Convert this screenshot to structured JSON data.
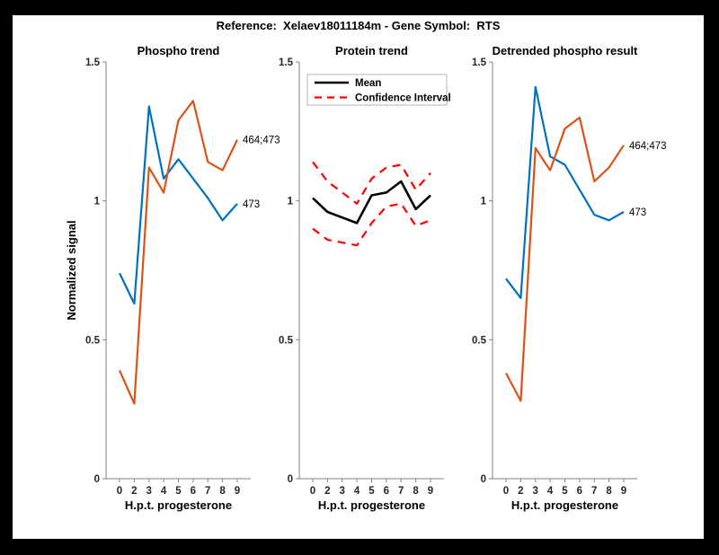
{
  "page": {
    "title": "Reference:  Xelaev18011184m - Gene Symbol:  RTS"
  },
  "colors": {
    "series_blue": "#0072BD",
    "series_orange": "#D95319",
    "ci_red": "#FF0000",
    "mean_black": "#000000",
    "axis_line": "#808080",
    "tick_text": "#262626",
    "legend_border": "#B3B3B3"
  },
  "axes": {
    "ylabel": "Normalized signal",
    "xlabel": "H.p.t. progesterone",
    "ylim": [
      0,
      1.5
    ],
    "y_ticks": [
      "0",
      "0.5",
      "1",
      "1.5"
    ],
    "y_tick_values": [
      0,
      0.5,
      1,
      1.5
    ],
    "x_tick_labels": [
      "0",
      "2",
      "3",
      "4",
      "5",
      "6",
      "7",
      "8",
      "9"
    ],
    "grid": "off"
  },
  "chart_data": [
    {
      "type": "line",
      "title": "Phospho trend",
      "xlabel": "H.p.t. progesterone",
      "ylabel": "Normalized signal",
      "ylim": [
        0,
        1.5
      ],
      "categories": [
        "0",
        "2",
        "3",
        "4",
        "5",
        "6",
        "7",
        "8",
        "9"
      ],
      "series": [
        {
          "name": "473",
          "color": "blue",
          "style": "solid",
          "end_label": "473",
          "values": [
            0.74,
            0.63,
            1.34,
            1.08,
            1.15,
            1.08,
            1.01,
            0.93,
            0.99
          ]
        },
        {
          "name": "464;473",
          "color": "orange",
          "style": "solid",
          "end_label": "464;473",
          "values": [
            0.39,
            0.27,
            1.12,
            1.03,
            1.29,
            1.36,
            1.14,
            1.11,
            1.22
          ]
        }
      ]
    },
    {
      "type": "line",
      "title": "Protein trend",
      "xlabel": "H.p.t. progesterone",
      "ylim": [
        0,
        1.5
      ],
      "categories": [
        "0",
        "2",
        "3",
        "4",
        "5",
        "6",
        "7",
        "8",
        "9"
      ],
      "legend": {
        "position": "top-left",
        "entries": [
          {
            "label": "Mean",
            "color": "black",
            "style": "solid"
          },
          {
            "label": "Confidence Interval",
            "color": "red",
            "style": "dashed"
          }
        ]
      },
      "series": [
        {
          "name": "Mean",
          "color": "black",
          "style": "solid",
          "values": [
            1.01,
            0.96,
            0.94,
            0.92,
            1.02,
            1.03,
            1.07,
            0.97,
            1.02
          ]
        },
        {
          "name": "Confidence Interval upper",
          "color": "red",
          "style": "dashed",
          "values": [
            1.14,
            1.07,
            1.03,
            0.99,
            1.08,
            1.12,
            1.13,
            1.04,
            1.1
          ]
        },
        {
          "name": "Confidence Interval lower",
          "color": "red",
          "style": "dashed",
          "values": [
            0.9,
            0.86,
            0.85,
            0.84,
            0.92,
            0.98,
            0.99,
            0.91,
            0.93
          ]
        }
      ]
    },
    {
      "type": "line",
      "title": "Detrended phospho result",
      "xlabel": "H.p.t. progesterone",
      "ylim": [
        0,
        1.5
      ],
      "categories": [
        "0",
        "2",
        "3",
        "4",
        "5",
        "6",
        "7",
        "8",
        "9"
      ],
      "series": [
        {
          "name": "473",
          "color": "blue",
          "style": "solid",
          "end_label": "473",
          "values": [
            0.72,
            0.65,
            1.41,
            1.16,
            1.13,
            1.04,
            0.95,
            0.93,
            0.96
          ]
        },
        {
          "name": "464;473",
          "color": "orange",
          "style": "solid",
          "end_label": "464;473",
          "values": [
            0.38,
            0.28,
            1.19,
            1.11,
            1.26,
            1.3,
            1.07,
            1.12,
            1.2
          ]
        }
      ]
    }
  ]
}
